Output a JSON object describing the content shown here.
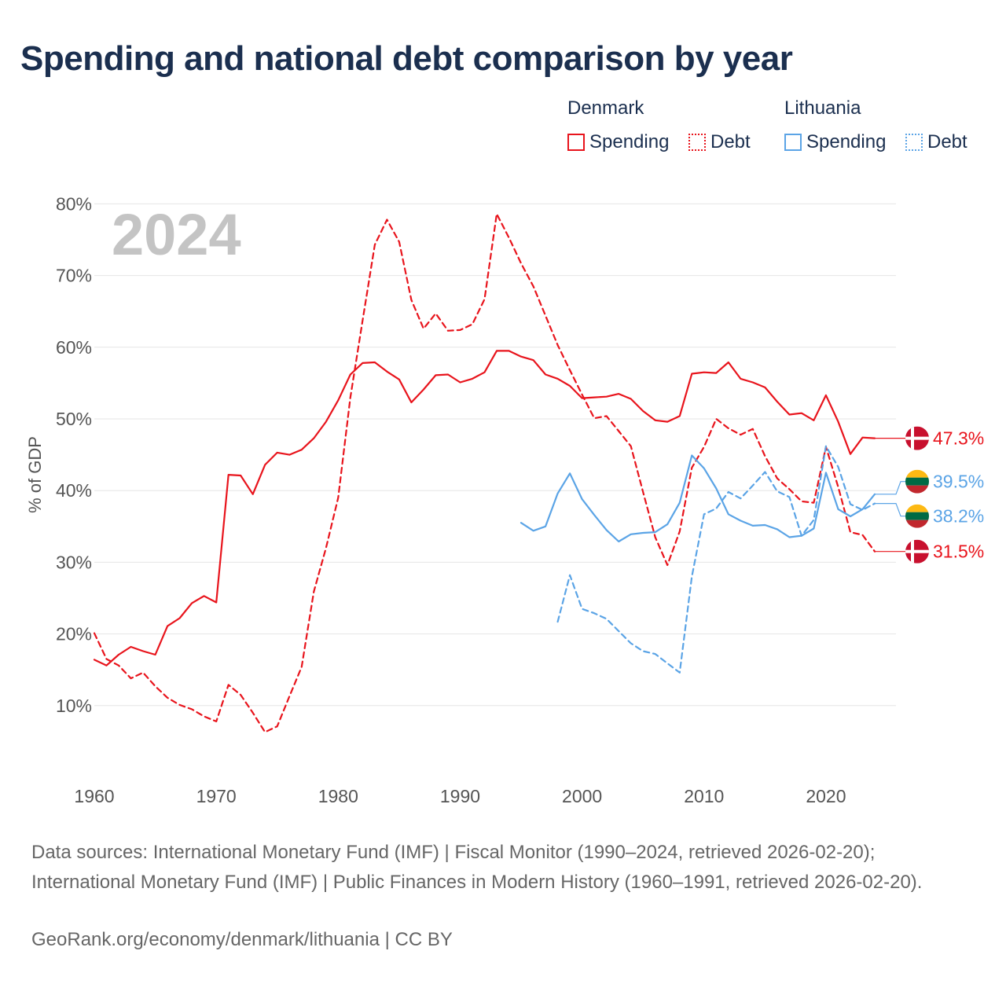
{
  "title": "Spending and national debt comparison by year",
  "legend": {
    "groups": [
      {
        "country": "Denmark",
        "color": "#e8141c",
        "items": [
          {
            "label": "Spending",
            "style": "solid"
          },
          {
            "label": "Debt",
            "style": "dotted"
          }
        ]
      },
      {
        "country": "Lithuania",
        "color": "#5ba4e6",
        "items": [
          {
            "label": "Spending",
            "style": "solid"
          },
          {
            "label": "Debt",
            "style": "dotted"
          }
        ]
      }
    ]
  },
  "chart_data": {
    "type": "line",
    "year_label": "2024",
    "ylabel": "% of GDP",
    "xlim": [
      1960,
      2024
    ],
    "ylim": [
      0,
      80
    ],
    "x_ticks": [
      "1960",
      "1970",
      "1980",
      "1990",
      "2000",
      "2010",
      "2020"
    ],
    "y_ticks": [
      "10%",
      "20%",
      "30%",
      "40%",
      "50%",
      "60%",
      "70%",
      "80%"
    ],
    "series": [
      {
        "name": "Denmark Spending",
        "country": "Denmark",
        "metric": "Spending",
        "color": "#e8141c",
        "dashed": false,
        "start_year": 1960,
        "values": [
          16.4,
          15.6,
          17.1,
          18.2,
          17.6,
          17.1,
          21.1,
          22.2,
          24.3,
          25.3,
          24.4,
          42.2,
          42.1,
          39.5,
          43.6,
          45.3,
          45.0,
          45.7,
          47.3,
          49.6,
          52.6,
          56.2,
          57.8,
          57.9,
          56.6,
          55.5,
          52.3,
          54.1,
          56.1,
          56.2,
          55.1,
          55.6,
          56.5,
          59.5,
          59.5,
          58.7,
          58.2,
          56.2,
          55.6,
          54.6,
          52.9,
          53.0,
          53.1,
          53.5,
          52.8,
          51.1,
          49.8,
          49.6,
          50.4,
          56.3,
          56.5,
          56.4,
          57.9,
          55.6,
          55.1,
          54.4,
          52.4,
          50.6,
          50.8,
          49.8,
          53.3,
          49.6,
          45.1,
          47.4,
          47.3
        ],
        "end_label": "47.3%"
      },
      {
        "name": "Denmark Debt",
        "country": "Denmark",
        "metric": "Debt",
        "color": "#e8141c",
        "dashed": true,
        "start_year": 1960,
        "values": [
          20.1,
          16.5,
          15.6,
          13.8,
          14.6,
          12.7,
          11.1,
          10.1,
          9.5,
          8.5,
          7.8,
          12.9,
          11.5,
          9.0,
          6.3,
          7.1,
          11.3,
          15.4,
          25.9,
          32.0,
          39.0,
          53.0,
          63.7,
          74.3,
          77.8,
          74.7,
          66.6,
          62.6,
          64.7,
          62.3,
          62.4,
          63.2,
          66.7,
          78.6,
          75.3,
          71.7,
          68.5,
          64.4,
          60.3,
          56.8,
          53.4,
          50.1,
          50.4,
          48.3,
          46.2,
          39.8,
          33.5,
          29.6,
          34.3,
          43.2,
          46.1,
          50.0,
          48.7,
          47.8,
          48.6,
          44.8,
          41.7,
          40.2,
          38.5,
          38.3,
          46.1,
          40.5,
          34.2,
          33.8,
          31.5
        ],
        "end_label": "31.5%"
      },
      {
        "name": "Lithuania Spending",
        "country": "Lithuania",
        "metric": "Spending",
        "color": "#5ba4e6",
        "dashed": false,
        "start_year": 1995,
        "values": [
          35.5,
          34.4,
          35.0,
          39.6,
          42.4,
          38.8,
          36.6,
          34.5,
          32.9,
          33.9,
          34.1,
          34.2,
          35.3,
          38.3,
          44.9,
          43.1,
          40.3,
          36.7,
          35.8,
          35.1,
          35.2,
          34.6,
          33.5,
          33.7,
          34.7,
          42.5,
          37.4,
          36.4,
          37.4,
          39.5
        ],
        "end_label": "39.5%"
      },
      {
        "name": "Lithuania Debt",
        "country": "Lithuania",
        "metric": "Debt",
        "color": "#5ba4e6",
        "dashed": true,
        "start_year": 1998,
        "values": [
          21.7,
          28.2,
          23.5,
          22.9,
          22.1,
          20.4,
          18.7,
          17.6,
          17.2,
          15.9,
          14.6,
          28.0,
          36.7,
          37.5,
          39.8,
          38.9,
          40.7,
          42.6,
          39.9,
          39.1,
          33.7,
          35.9,
          46.2,
          43.3,
          38.1,
          37.3,
          38.2
        ],
        "end_label": "38.2%"
      }
    ]
  },
  "footer": {
    "sources": "Data sources: International Monetary Fund (IMF) | Fiscal Monitor (1990–2024, retrieved 2026-02-20); International Monetary Fund (IMF) | Public Finances in Modern History (1960–1991, retrieved 2026-02-20).",
    "link": "GeoRank.org/economy/denmark/lithuania | CC BY"
  }
}
